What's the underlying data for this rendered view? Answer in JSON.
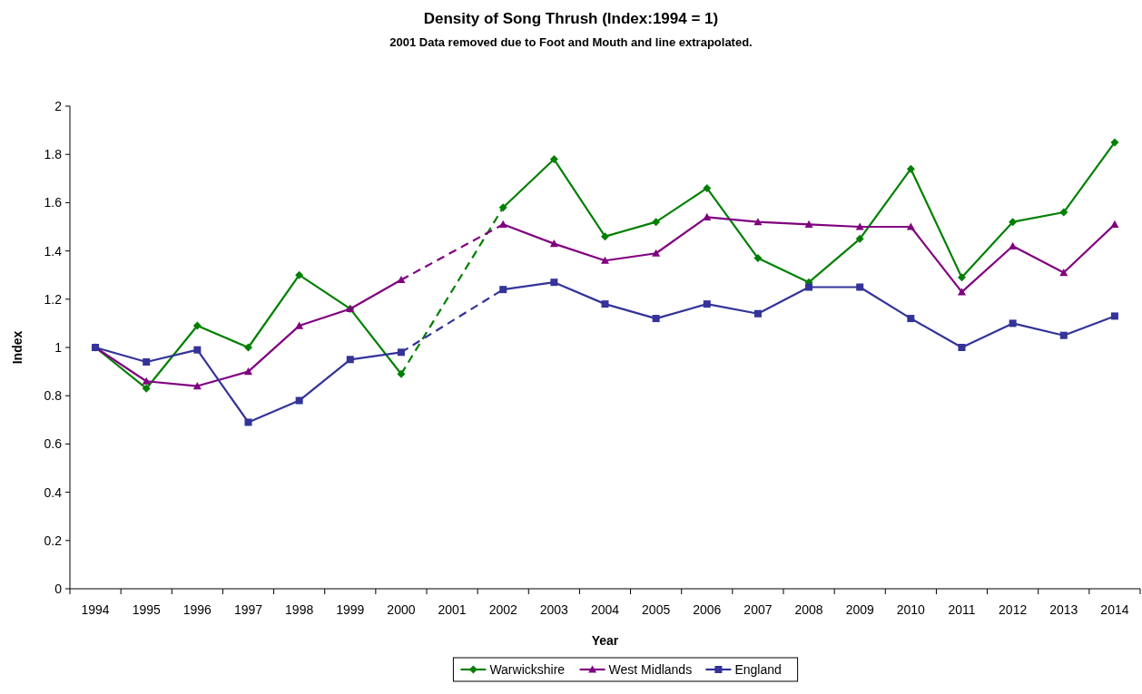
{
  "chart_data": {
    "type": "line",
    "title": "Density of Song Thrush (Index:1994 = 1)",
    "subtitle": "2001 Data removed due to Foot and Mouth and line extrapolated.",
    "xlabel": "Year",
    "ylabel": "Index",
    "categories": [
      "1994",
      "1995",
      "1996",
      "1997",
      "1998",
      "1999",
      "2000",
      "2001",
      "2002",
      "2003",
      "2004",
      "2005",
      "2006",
      "2007",
      "2008",
      "2009",
      "2010",
      "2011",
      "2012",
      "2013",
      "2014"
    ],
    "series": [
      {
        "name": "Warwickshire",
        "color": "#008000",
        "marker": "diamond",
        "values": [
          1.0,
          0.83,
          1.09,
          1.0,
          1.3,
          1.16,
          0.89,
          null,
          1.58,
          1.78,
          1.46,
          1.52,
          1.66,
          1.37,
          1.27,
          1.45,
          1.74,
          1.29,
          1.52,
          1.56,
          1.85
        ]
      },
      {
        "name": "West Midlands",
        "color": "#800080",
        "marker": "triangle",
        "values": [
          1.0,
          0.86,
          0.84,
          0.9,
          1.09,
          1.16,
          1.28,
          null,
          1.51,
          1.43,
          1.36,
          1.39,
          1.54,
          1.52,
          1.51,
          1.5,
          1.5,
          1.23,
          1.42,
          1.31,
          1.51
        ]
      },
      {
        "name": "England",
        "color": "#333399",
        "marker": "square",
        "values": [
          1.0,
          0.94,
          0.99,
          0.69,
          0.78,
          0.95,
          0.98,
          null,
          1.24,
          1.27,
          1.18,
          1.12,
          1.18,
          1.14,
          1.25,
          1.25,
          1.12,
          1.0,
          1.1,
          1.05,
          1.13
        ]
      }
    ],
    "ylim": [
      0,
      2
    ],
    "yticks": [
      0,
      0.2,
      0.4,
      0.6,
      0.8,
      1,
      1.2,
      1.4,
      1.6,
      1.8,
      2
    ],
    "grid": false,
    "legend": "bottom",
    "line_style": "solid"
  }
}
